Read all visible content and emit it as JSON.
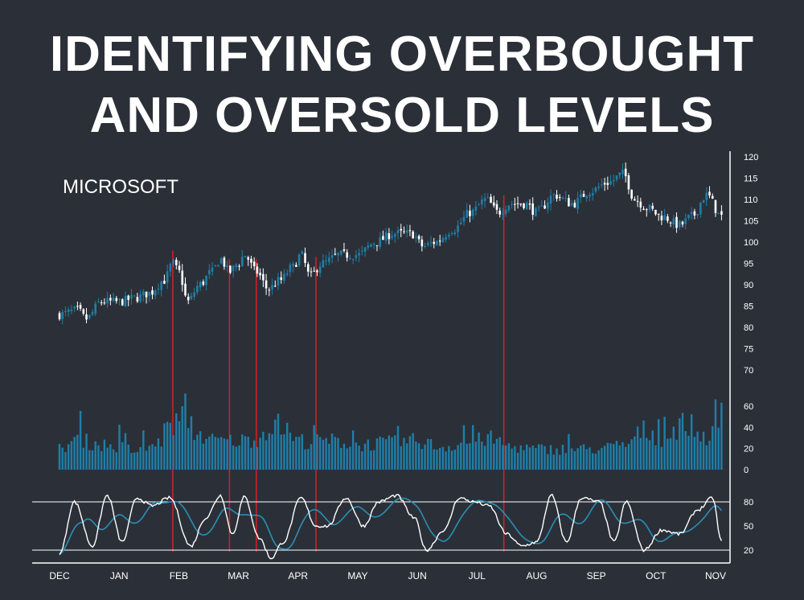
{
  "title": {
    "line1": "IDENTIFYING OVERBOUGHT",
    "line2": "AND OVERSOLD LEVELS"
  },
  "colors": {
    "background": "#2b3038",
    "up_candle": "#1f7fa8",
    "down_candle": "#ffffff",
    "volume": "#1f7fa8",
    "signal_line": "#d81f26",
    "stochastic_k": "#ffffff",
    "stochastic_d": "#2a8fb5"
  },
  "chart_data": [
    {
      "type": "candlestick",
      "label": "MICROSOFT",
      "ylim": [
        70,
        120
      ],
      "yticks": [
        120,
        115,
        110,
        105,
        100,
        95,
        90,
        85,
        80,
        75,
        70
      ],
      "months": [
        "DEC",
        "JAN",
        "FEB",
        "MAR",
        "APR",
        "MAY",
        "JUN",
        "JUL",
        "AUG",
        "SEP",
        "OCT",
        "NOV"
      ],
      "close_path": [
        {
          "t": 0.0,
          "v": 83
        },
        {
          "t": 0.3,
          "v": 84
        },
        {
          "t": 0.45,
          "v": 82
        },
        {
          "t": 0.7,
          "v": 86
        },
        {
          "t": 1.0,
          "v": 86
        },
        {
          "t": 1.3,
          "v": 87
        },
        {
          "t": 1.5,
          "v": 88
        },
        {
          "t": 1.75,
          "v": 91
        },
        {
          "t": 1.9,
          "v": 95
        },
        {
          "t": 2.0,
          "v": 93
        },
        {
          "t": 2.15,
          "v": 86
        },
        {
          "t": 2.35,
          "v": 90
        },
        {
          "t": 2.55,
          "v": 93
        },
        {
          "t": 2.7,
          "v": 96
        },
        {
          "t": 2.85,
          "v": 93
        },
        {
          "t": 3.0,
          "v": 95
        },
        {
          "t": 3.1,
          "v": 97
        },
        {
          "t": 3.3,
          "v": 93
        },
        {
          "t": 3.5,
          "v": 89
        },
        {
          "t": 3.7,
          "v": 91
        },
        {
          "t": 3.9,
          "v": 94
        },
        {
          "t": 4.05,
          "v": 97
        },
        {
          "t": 4.2,
          "v": 92
        },
        {
          "t": 4.4,
          "v": 95
        },
        {
          "t": 4.7,
          "v": 97
        },
        {
          "t": 5.0,
          "v": 97
        },
        {
          "t": 5.3,
          "v": 100
        },
        {
          "t": 5.6,
          "v": 102
        },
        {
          "t": 5.9,
          "v": 102
        },
        {
          "t": 6.1,
          "v": 99
        },
        {
          "t": 6.3,
          "v": 100
        },
        {
          "t": 6.6,
          "v": 103
        },
        {
          "t": 6.9,
          "v": 107
        },
        {
          "t": 7.15,
          "v": 110
        },
        {
          "t": 7.35,
          "v": 107
        },
        {
          "t": 7.55,
          "v": 109
        },
        {
          "t": 7.8,
          "v": 109
        },
        {
          "t": 8.0,
          "v": 107
        },
        {
          "t": 8.3,
          "v": 111
        },
        {
          "t": 8.6,
          "v": 109
        },
        {
          "t": 8.9,
          "v": 112
        },
        {
          "t": 9.2,
          "v": 114
        },
        {
          "t": 9.45,
          "v": 116
        },
        {
          "t": 9.65,
          "v": 110
        },
        {
          "t": 9.85,
          "v": 108
        },
        {
          "t": 10.1,
          "v": 106
        },
        {
          "t": 10.4,
          "v": 104
        },
        {
          "t": 10.6,
          "v": 106
        },
        {
          "t": 10.85,
          "v": 111
        },
        {
          "t": 11.1,
          "v": 106
        }
      ]
    },
    {
      "type": "bar",
      "label": "volume",
      "ylim": [
        0,
        70
      ],
      "yticks": [
        60,
        40,
        20,
        0
      ],
      "envelope": [
        {
          "t": 0.0,
          "v": 20
        },
        {
          "t": 0.3,
          "v": 30
        },
        {
          "t": 0.6,
          "v": 25
        },
        {
          "t": 1.0,
          "v": 22
        },
        {
          "t": 1.3,
          "v": 18
        },
        {
          "t": 1.6,
          "v": 24
        },
        {
          "t": 1.95,
          "v": 45
        },
        {
          "t": 2.1,
          "v": 55
        },
        {
          "t": 2.3,
          "v": 35
        },
        {
          "t": 2.6,
          "v": 28
        },
        {
          "t": 3.0,
          "v": 28
        },
        {
          "t": 3.3,
          "v": 30
        },
        {
          "t": 3.6,
          "v": 45
        },
        {
          "t": 3.9,
          "v": 30
        },
        {
          "t": 4.2,
          "v": 27
        },
        {
          "t": 4.6,
          "v": 28
        },
        {
          "t": 5.0,
          "v": 24
        },
        {
          "t": 5.5,
          "v": 26
        },
        {
          "t": 6.0,
          "v": 28
        },
        {
          "t": 6.4,
          "v": 22
        },
        {
          "t": 6.8,
          "v": 26
        },
        {
          "t": 7.2,
          "v": 30
        },
        {
          "t": 7.6,
          "v": 22
        },
        {
          "t": 8.0,
          "v": 20
        },
        {
          "t": 8.5,
          "v": 20
        },
        {
          "t": 9.0,
          "v": 20
        },
        {
          "t": 9.5,
          "v": 24
        },
        {
          "t": 9.8,
          "v": 38
        },
        {
          "t": 10.1,
          "v": 30
        },
        {
          "t": 10.5,
          "v": 45
        },
        {
          "t": 10.8,
          "v": 32
        },
        {
          "t": 11.1,
          "v": 36
        }
      ]
    },
    {
      "type": "line",
      "label": "stochastic",
      "ylim": [
        10,
        95
      ],
      "yticks": [
        80,
        50,
        20
      ],
      "thresholds": [
        80,
        20
      ],
      "pivots": [
        {
          "t": 0.0,
          "v": 15
        },
        {
          "t": 0.25,
          "v": 80
        },
        {
          "t": 0.55,
          "v": 25
        },
        {
          "t": 0.8,
          "v": 88
        },
        {
          "t": 1.05,
          "v": 30
        },
        {
          "t": 1.3,
          "v": 85
        },
        {
          "t": 1.55,
          "v": 75
        },
        {
          "t": 1.85,
          "v": 85
        },
        {
          "t": 2.2,
          "v": 25
        },
        {
          "t": 2.45,
          "v": 60
        },
        {
          "t": 2.7,
          "v": 88
        },
        {
          "t": 2.9,
          "v": 40
        },
        {
          "t": 3.1,
          "v": 86
        },
        {
          "t": 3.35,
          "v": 35
        },
        {
          "t": 3.55,
          "v": 10
        },
        {
          "t": 3.75,
          "v": 30
        },
        {
          "t": 4.05,
          "v": 85
        },
        {
          "t": 4.3,
          "v": 50
        },
        {
          "t": 4.5,
          "v": 50
        },
        {
          "t": 4.8,
          "v": 85
        },
        {
          "t": 5.1,
          "v": 50
        },
        {
          "t": 5.35,
          "v": 80
        },
        {
          "t": 5.65,
          "v": 88
        },
        {
          "t": 5.95,
          "v": 60
        },
        {
          "t": 6.15,
          "v": 20
        },
        {
          "t": 6.45,
          "v": 45
        },
        {
          "t": 6.7,
          "v": 85
        },
        {
          "t": 6.95,
          "v": 80
        },
        {
          "t": 7.2,
          "v": 75
        },
        {
          "t": 7.5,
          "v": 40
        },
        {
          "t": 7.75,
          "v": 25
        },
        {
          "t": 8.0,
          "v": 30
        },
        {
          "t": 8.25,
          "v": 88
        },
        {
          "t": 8.5,
          "v": 30
        },
        {
          "t": 8.75,
          "v": 85
        },
        {
          "t": 9.05,
          "v": 80
        },
        {
          "t": 9.3,
          "v": 30
        },
        {
          "t": 9.5,
          "v": 80
        },
        {
          "t": 9.8,
          "v": 20
        },
        {
          "t": 10.1,
          "v": 45
        },
        {
          "t": 10.4,
          "v": 40
        },
        {
          "t": 10.7,
          "v": 70
        },
        {
          "t": 10.95,
          "v": 85
        },
        {
          "t": 11.1,
          "v": 30
        }
      ]
    }
  ],
  "signal_lines": [
    1.9,
    2.85,
    3.3,
    4.3,
    7.45
  ]
}
